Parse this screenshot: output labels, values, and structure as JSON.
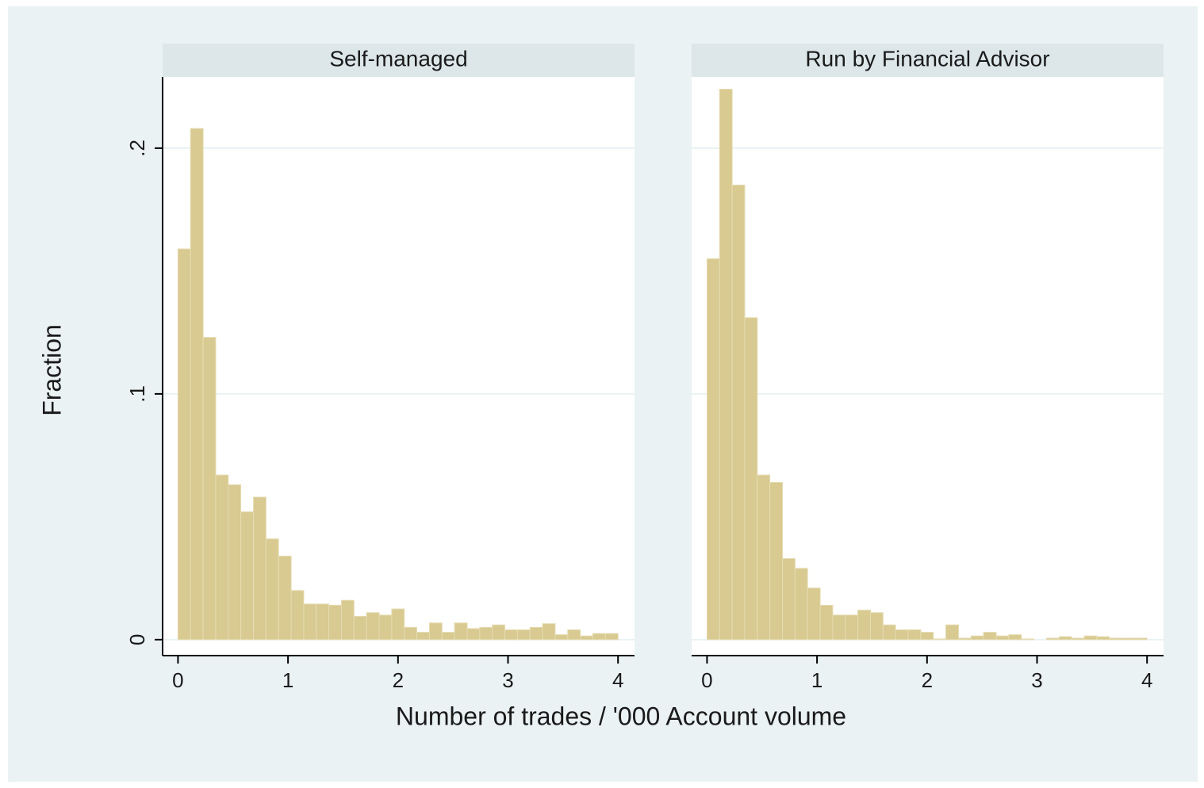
{
  "chart_data": {
    "type": "histogram",
    "y_label": "Fraction",
    "x_label": "Number of trades / '000 Account volume",
    "color": "#d8ca90",
    "grid": true,
    "xlim": [
      -0.14,
      4.15
    ],
    "xticks": [
      0,
      1,
      2,
      3,
      4
    ],
    "ylim": [
      -0.0065,
      0.229
    ],
    "yticks": [
      0,
      {
        "value": 0.1,
        "label": ".1"
      },
      {
        "value": 0.2,
        "label": ".2"
      }
    ],
    "panels": [
      {
        "title": "Self-managed",
        "bins": [
          0,
          0.114,
          0.229,
          0.343,
          0.457,
          0.571,
          0.686,
          0.8,
          0.914,
          1.029,
          1.143,
          1.257,
          1.371,
          1.486,
          1.6,
          1.714,
          1.829,
          1.943,
          2.057,
          2.171,
          2.286,
          2.4,
          2.514,
          2.629,
          2.743,
          2.857,
          2.971,
          3.086,
          3.2,
          3.314,
          3.429,
          3.543,
          3.657,
          3.771,
          3.886,
          4
        ],
        "values": [
          0.159,
          0.208,
          0.123,
          0.067,
          0.063,
          0.052,
          0.058,
          0.041,
          0.034,
          0.02,
          0.0145,
          0.0145,
          0.014,
          0.016,
          0.0095,
          0.011,
          0.01,
          0.0125,
          0.005,
          0.003,
          0.0068,
          0.003,
          0.0068,
          0.0045,
          0.005,
          0.006,
          0.004,
          0.004,
          0.005,
          0.0065,
          0.002,
          0.004,
          0.0015,
          0.0025,
          0.0025
        ]
      },
      {
        "title": "Run by Financial Advisor",
        "bins": [
          0,
          0.114,
          0.229,
          0.343,
          0.457,
          0.571,
          0.686,
          0.8,
          0.914,
          1.029,
          1.143,
          1.257,
          1.371,
          1.486,
          1.6,
          1.714,
          1.829,
          1.943,
          2.057,
          2.171,
          2.286,
          2.4,
          2.514,
          2.629,
          2.743,
          2.857,
          2.971,
          3.086,
          3.2,
          3.314,
          3.429,
          3.543,
          3.657,
          3.771,
          3.886,
          4
        ],
        "values": [
          0.155,
          0.224,
          0.185,
          0.131,
          0.067,
          0.064,
          0.033,
          0.029,
          0.021,
          0.014,
          0.01,
          0.01,
          0.012,
          0.011,
          0.006,
          0.004,
          0.004,
          0.003,
          0.0003,
          0.006,
          0.0006,
          0.0015,
          0.003,
          0.0015,
          0.002,
          0.0003,
          0,
          0.0006,
          0.0012,
          0.0006,
          0.0015,
          0.0012,
          0.0006,
          0.0006,
          0.0006
        ]
      }
    ]
  }
}
